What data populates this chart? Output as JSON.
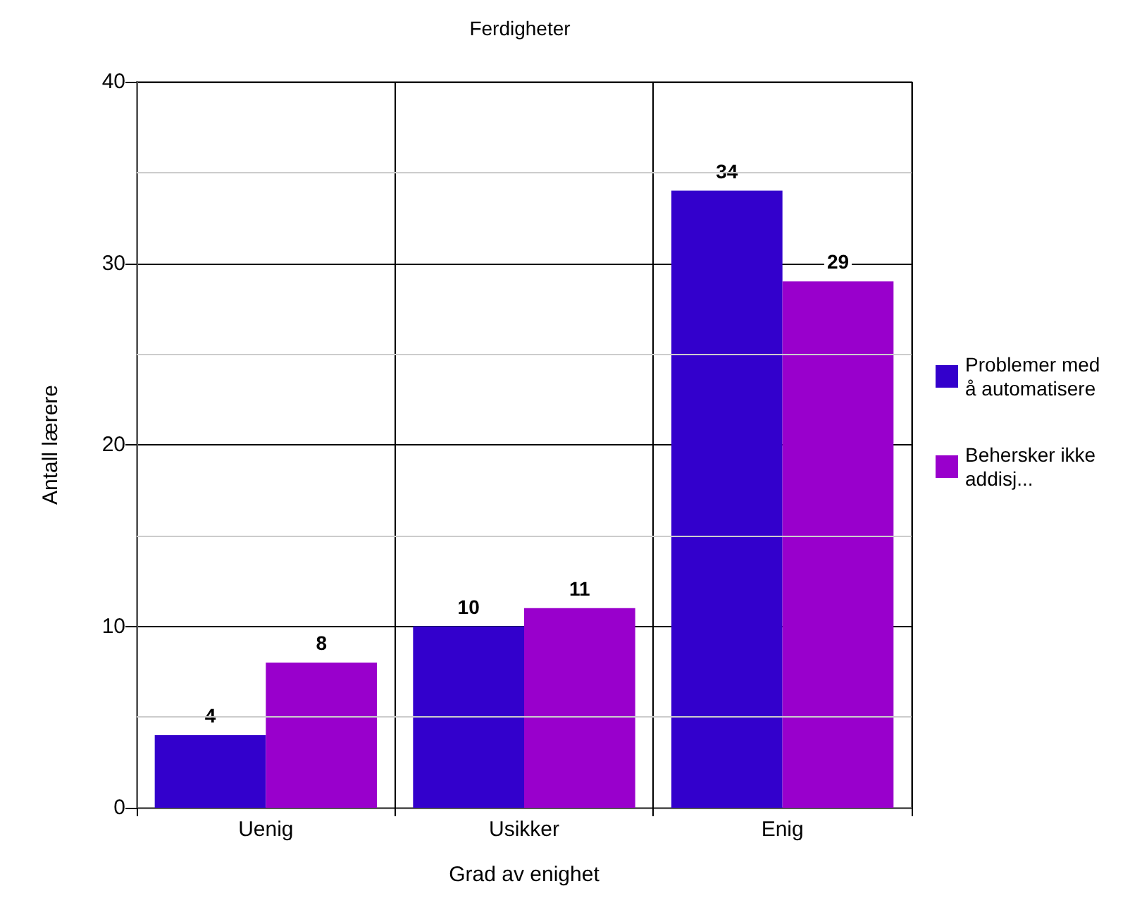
{
  "chart_data": {
    "type": "bar",
    "title": "Ferdigheter",
    "xlabel": "Grad av enighet",
    "ylabel": "Antall lærere",
    "categories": [
      "Uenig",
      "Usikker",
      "Enig"
    ],
    "series": [
      {
        "name": "Problemer med å automatisere",
        "color": "#3300cc",
        "values": [
          4,
          10,
          34
        ]
      },
      {
        "name": "Behersker ikke addisj...",
        "color": "#9900cc",
        "values": [
          8,
          11,
          29
        ]
      }
    ],
    "ylim": [
      0,
      40
    ],
    "yticks": [
      0,
      {
        "value": 5,
        "label": null
      },
      10,
      {
        "value": 15,
        "label": null
      },
      20,
      {
        "value": 25,
        "label": null
      },
      30,
      {
        "value": 35,
        "label": null
      },
      40
    ],
    "grid": true,
    "legend": "right",
    "data_labels": true
  }
}
